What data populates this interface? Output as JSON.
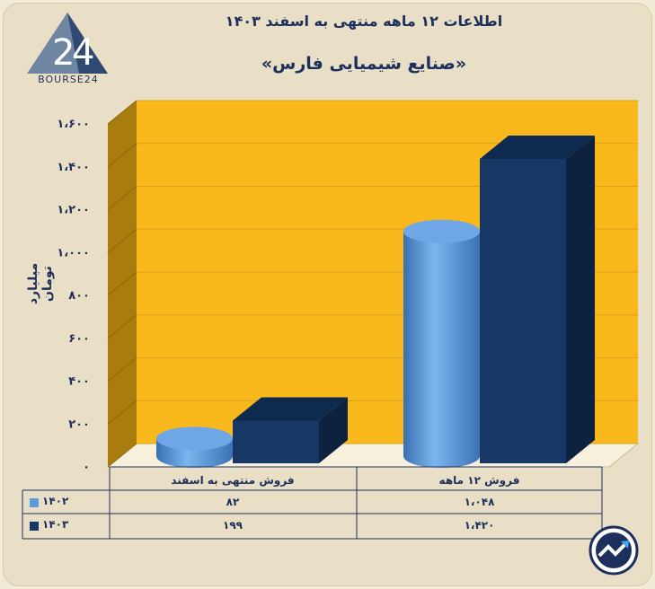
{
  "header": {
    "title": "اطلاعات ۱۲ ماهه منتهی به اسفند ۱۴۰۳",
    "subtitle": "«صنایع شیمیایی فارس»"
  },
  "logo": {
    "text": "BOURSE24"
  },
  "colors": {
    "series_1402": "#5b9be0",
    "series_1403": "#173866",
    "plot_background": "#f9b81c",
    "wall_side": "#a97c0e"
  },
  "chart_data": {
    "type": "bar",
    "categories": [
      "فروش منتهی به  اسفند",
      "فروش ۱۲  ماهه"
    ],
    "series": [
      {
        "name": "۱۴۰۲",
        "values": [
          82,
          1048
        ],
        "labels": [
          "۸۲",
          "۱،۰۴۸"
        ],
        "shape": "cylinder"
      },
      {
        "name": "۱۴۰۳",
        "values": [
          199,
          1420
        ],
        "labels": [
          "۱۹۹",
          "۱،۴۲۰"
        ],
        "shape": "box"
      }
    ],
    "ylabel": "میلیارد تومان",
    "ylim": [
      0,
      1600
    ],
    "yticks": [
      0,
      200,
      400,
      600,
      800,
      1000,
      1200,
      1400,
      1600
    ],
    "ytick_labels": [
      "۰",
      "۲۰۰",
      "۴۰۰",
      "۶۰۰",
      "۸۰۰",
      "۱،۰۰۰",
      "۱،۲۰۰",
      "۱،۴۰۰",
      "۱،۶۰۰"
    ],
    "grid": true,
    "legend": "data-table-left"
  }
}
